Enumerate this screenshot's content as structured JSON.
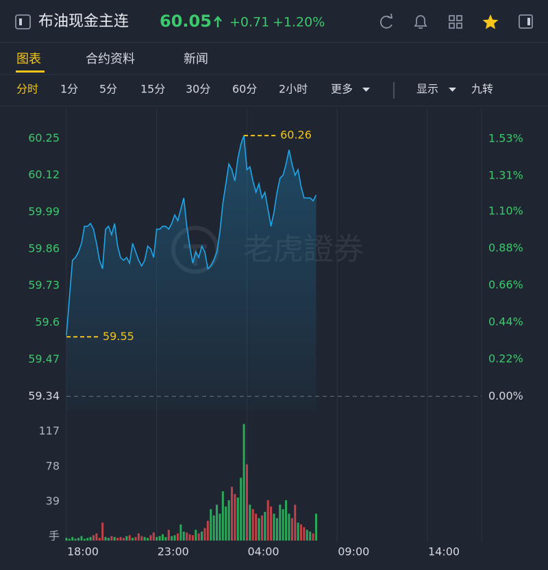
{
  "header": {
    "title": "布油现金主连",
    "price": "60.05",
    "change": "+0.71",
    "change_pct": "+1.20%"
  },
  "tabs": [
    "图表",
    "合约资料",
    "新闻"
  ],
  "periods": [
    "分时",
    "1分",
    "5分",
    "15分",
    "30分",
    "60分",
    "2小时",
    "更多"
  ],
  "options": [
    "显示",
    "九转"
  ],
  "chart_data": {
    "type": "line",
    "watermark": "老虎證券",
    "color": "#1ea7ea",
    "up_color": "#2fbf62",
    "down_color": "#e0474c",
    "x": [
      "18:00",
      "18:10",
      "18:20",
      "18:30",
      "18:40",
      "18:50",
      "19:00",
      "19:10",
      "19:20",
      "19:30",
      "19:40",
      "19:50",
      "20:00",
      "20:10",
      "20:20",
      "20:30",
      "20:40",
      "20:50",
      "21:00",
      "21:10",
      "21:20",
      "21:30",
      "21:40",
      "21:50",
      "22:00",
      "22:10",
      "22:20",
      "22:30",
      "22:40",
      "22:50",
      "23:00",
      "23:10",
      "23:20",
      "23:30",
      "23:40",
      "23:50",
      "00:00",
      "00:10",
      "00:20",
      "00:30",
      "00:40",
      "00:50",
      "01:00",
      "01:10",
      "01:20",
      "01:30",
      "01:40",
      "01:50",
      "02:00",
      "02:10",
      "02:20",
      "02:30",
      "02:40",
      "02:50",
      "03:00",
      "03:10",
      "03:20",
      "03:30",
      "03:40",
      "03:50",
      "04:00",
      "04:10",
      "04:20",
      "04:30",
      "04:40",
      "04:50",
      "05:00",
      "05:10",
      "05:20",
      "05:30",
      "05:40",
      "05:50",
      "06:00",
      "06:10",
      "06:20",
      "06:30",
      "06:40",
      "06:50",
      "07:00",
      "07:10",
      "07:20",
      "07:30",
      "07:40",
      "07:50"
    ],
    "values": [
      59.555,
      59.69,
      59.82,
      59.83,
      59.85,
      59.88,
      59.94,
      59.94,
      59.95,
      59.93,
      59.88,
      59.82,
      59.79,
      59.93,
      59.94,
      59.91,
      59.95,
      59.87,
      59.83,
      59.82,
      59.83,
      59.81,
      59.88,
      59.85,
      59.82,
      59.8,
      59.82,
      59.87,
      59.86,
      59.83,
      59.93,
      59.93,
      59.94,
      59.94,
      59.93,
      59.95,
      59.98,
      59.96,
      60.0,
      60.04,
      59.94,
      59.87,
      59.81,
      59.85,
      59.83,
      59.87,
      59.85,
      59.79,
      59.8,
      59.82,
      59.85,
      59.92,
      60.02,
      60.09,
      60.16,
      60.14,
      60.1,
      60.18,
      60.23,
      60.26,
      60.14,
      60.15,
      60.1,
      60.06,
      60.09,
      60.04,
      60.06,
      60.0,
      59.94,
      59.99,
      60.06,
      60.11,
      60.12,
      60.16,
      60.21,
      60.16,
      60.12,
      60.14,
      60.08,
      60.04,
      60.04,
      60.04,
      60.03,
      60.05
    ],
    "baseline": 59.34,
    "xlim": [
      "18:00",
      "17:00"
    ],
    "xticks": [
      "18:00",
      "23:00",
      "04:00",
      "09:00",
      "14:00"
    ],
    "ylim": [
      59.29,
      60.34
    ],
    "yticks": [
      59.34,
      59.47,
      59.6,
      59.73,
      59.86,
      59.99,
      60.12,
      60.25
    ],
    "y2lim": [
      -0.084,
      1.685
    ],
    "y2ticks": [
      {
        "value": 0,
        "label": "0.00%"
      },
      {
        "value": 0.22,
        "label": "0.22%"
      },
      {
        "value": 0.44,
        "label": "0.44%"
      },
      {
        "value": 0.66,
        "label": "0.66%"
      },
      {
        "value": 0.88,
        "label": "0.88%"
      },
      {
        "value": 1.1,
        "label": "1.10%"
      },
      {
        "value": 1.31,
        "label": "1.31%"
      },
      {
        "value": 1.53,
        "label": "1.53%"
      }
    ],
    "annotations": [
      {
        "x": "03:50",
        "value": 60.26
      },
      {
        "x": "18:00",
        "value": 59.55
      }
    ],
    "volume": {
      "values": [
        3,
        2,
        4,
        2,
        3,
        5,
        2,
        3,
        4,
        6,
        8,
        3,
        20,
        4,
        3,
        5,
        4,
        3,
        4,
        3,
        5,
        6,
        3,
        4,
        8,
        5,
        4,
        3,
        6,
        9,
        4,
        5,
        7,
        4,
        12,
        5,
        6,
        8,
        18,
        10,
        9,
        7,
        6,
        12,
        8,
        10,
        14,
        22,
        35,
        28,
        40,
        30,
        55,
        38,
        45,
        60,
        52,
        48,
        70,
        130,
        85,
        40,
        35,
        30,
        25,
        28,
        32,
        45,
        38,
        30,
        25,
        40,
        35,
        45,
        30,
        25,
        40,
        20,
        18,
        15,
        12,
        10,
        8,
        30
      ],
      "ylim": [
        0,
        148
      ],
      "yticks": [
        {
          "value": 0,
          "label": "手"
        },
        39,
        78,
        117
      ]
    }
  }
}
